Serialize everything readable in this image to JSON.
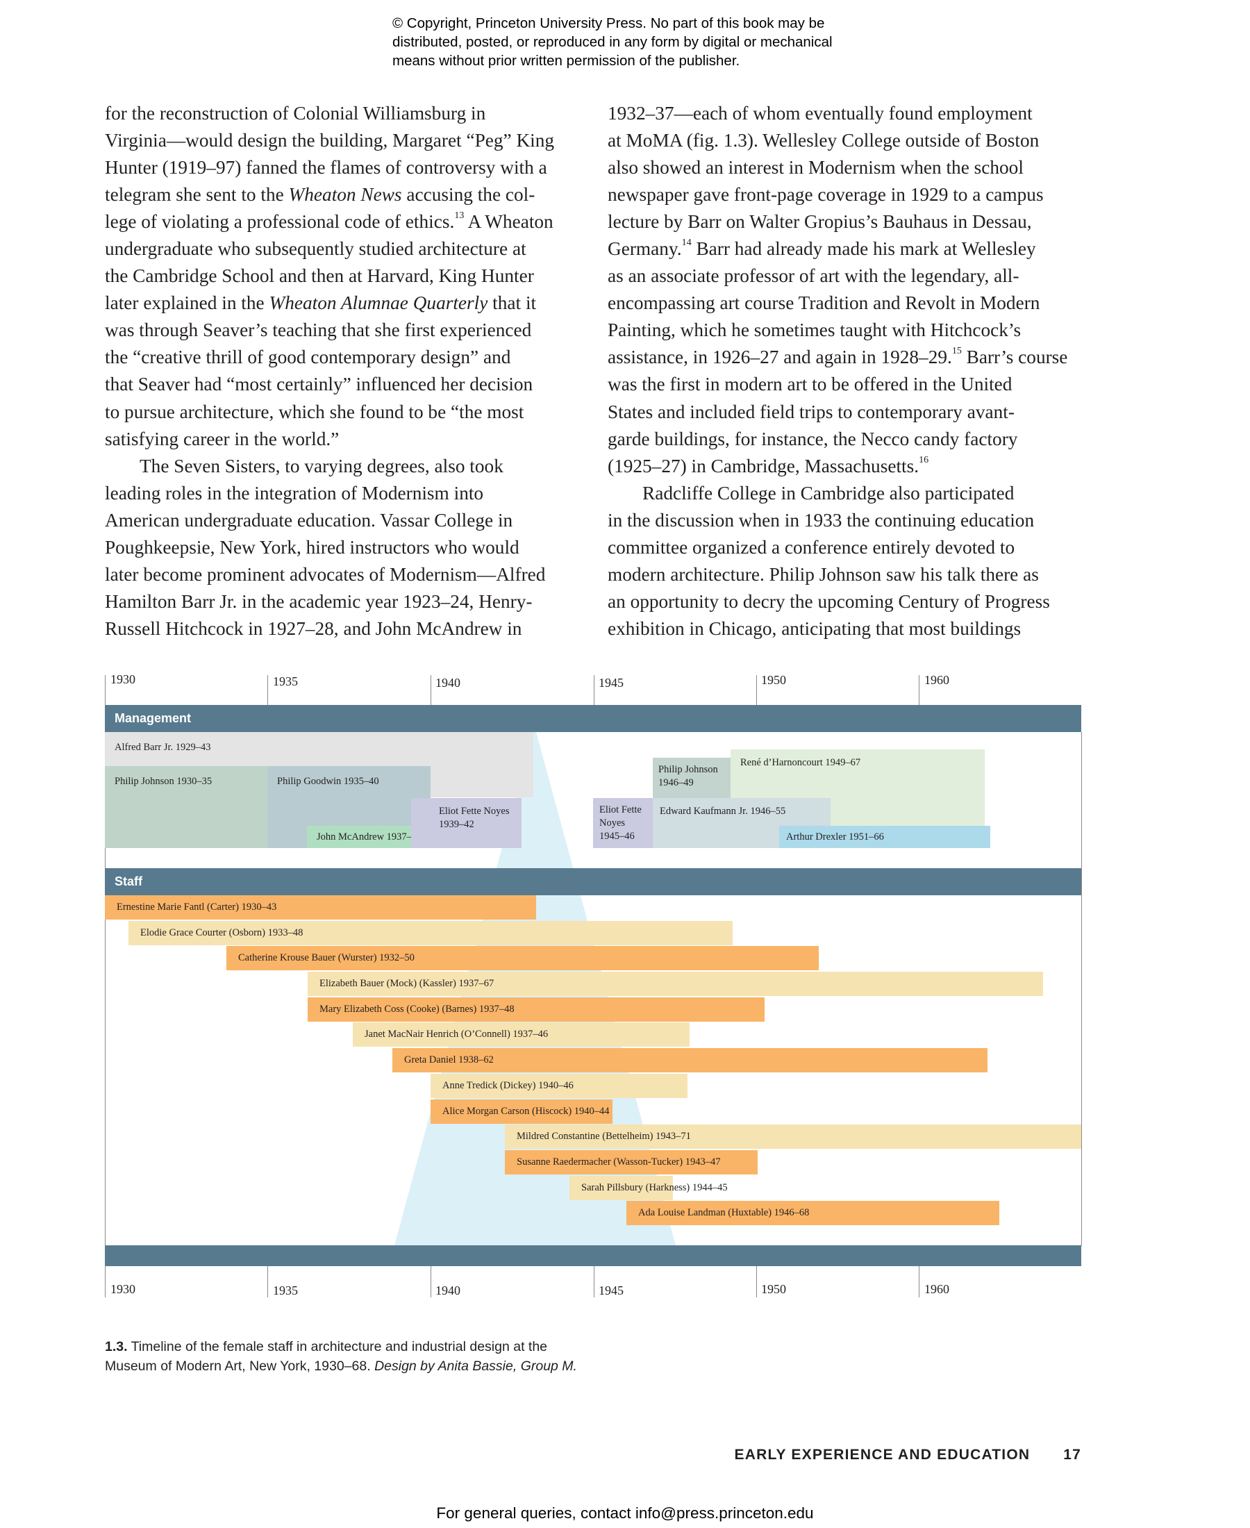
{
  "header": {
    "copyright_lines": [
      "© Copyright, Princeton University Press. No part of this book may be",
      "distributed, posted, or reproduced in any form by digital or mechanical",
      "means without prior written permission of the publisher."
    ]
  },
  "body": {
    "left_column": [
      [
        {
          "text": "for the reconstruction of Colonial Williamsburg in"
        }
      ],
      [
        {
          "text": "Virginia—would design the building, Margaret “Peg” King"
        }
      ],
      [
        {
          "text": "Hunter (1919–97) fanned the flames of controversy with a"
        }
      ],
      [
        {
          "text": "telegram she sent to the "
        },
        {
          "text": "Wheaton News",
          "style": "italic"
        },
        {
          "text": " accusing the col-"
        }
      ],
      [
        {
          "text": "lege of violating a professional code of ethics."
        },
        {
          "text": "13",
          "style": "sup"
        },
        {
          "text": " A Wheaton"
        }
      ],
      [
        {
          "text": "undergraduate who subsequently studied architecture at"
        }
      ],
      [
        {
          "text": "the Cambridge School and then at Harvard, King Hunter"
        }
      ],
      [
        {
          "text": "later explained in the "
        },
        {
          "text": "Wheaton Alumnae Quarterly",
          "style": "italic"
        },
        {
          "text": " that it"
        }
      ],
      [
        {
          "text": "was through Seaver’s teaching that she first experienced"
        }
      ],
      [
        {
          "text": "the “creative thrill of good contemporary design” and"
        }
      ],
      [
        {
          "text": "that Seaver had “most certainly” influenced her decision"
        }
      ],
      [
        {
          "text": "to pursue architecture, which she found to be “the most"
        }
      ],
      [
        {
          "text": "satisfying career in the world.”"
        }
      ],
      [
        {
          "text": "The Seven Sisters, to varying degrees, also took",
          "indent": true
        }
      ],
      [
        {
          "text": "leading roles in the integration of Modernism into"
        }
      ],
      [
        {
          "text": "American undergraduate education. Vassar College in"
        }
      ],
      [
        {
          "text": "Poughkeepsie, New York, hired instructors who would"
        }
      ],
      [
        {
          "text": "later become prominent advocates of Modernism—Alfred"
        }
      ],
      [
        {
          "text": "Hamilton Barr Jr. in the academic year 1923–24, Henry-"
        }
      ],
      [
        {
          "text": "Russell Hitchcock in 1927–28, and John McAndrew in"
        }
      ]
    ],
    "right_column": [
      [
        {
          "text": "1932–37—each of whom eventually found employment"
        }
      ],
      [
        {
          "text": "at MoMA (fig. 1.3). Wellesley College outside of Boston"
        }
      ],
      [
        {
          "text": "also showed an interest in Modernism when the school"
        }
      ],
      [
        {
          "text": "newspaper gave front-page coverage in 1929 to a campus"
        }
      ],
      [
        {
          "text": "lecture by Barr on Walter Gropius’s Bauhaus in Dessau,"
        }
      ],
      [
        {
          "text": "Germany."
        },
        {
          "text": "14",
          "style": "sup"
        },
        {
          "text": " Barr had already made his mark at Wellesley"
        }
      ],
      [
        {
          "text": "as an associate professor of art with the legendary, all-"
        }
      ],
      [
        {
          "text": "encompassing art course Tradition and Revolt in Modern"
        }
      ],
      [
        {
          "text": "Painting, which he sometimes taught with Hitchcock’s"
        }
      ],
      [
        {
          "text": "assistance, in 1926–27 and again in 1928–29."
        },
        {
          "text": "15",
          "style": "sup"
        },
        {
          "text": " Barr’s course"
        }
      ],
      [
        {
          "text": "was the first in modern art to be offered in the United"
        }
      ],
      [
        {
          "text": "States and included field trips to contemporary avant-"
        }
      ],
      [
        {
          "text": "garde buildings, for instance, the Necco candy factory"
        }
      ],
      [
        {
          "text": "(1925–27) in Cambridge, Massachusetts."
        },
        {
          "text": "16",
          "style": "sup"
        }
      ],
      [
        {
          "text": "Radcliffe College in Cambridge also participated",
          "indent": true
        }
      ],
      [
        {
          "text": "in the discussion when in 1933 the continuing education"
        }
      ],
      [
        {
          "text": "committee organized a conference entirely devoted to"
        }
      ],
      [
        {
          "text": "modern architecture. Philip Johnson saw his talk there as"
        }
      ],
      [
        {
          "text": "an opportunity to decry the upcoming Century of Progress"
        }
      ],
      [
        {
          "text": "exhibition in Chicago, anticipating that most buildings"
        }
      ]
    ]
  },
  "timeline": {
    "years": [
      "1930",
      "1935",
      "1940",
      "1945",
      "1950",
      "1960"
    ],
    "management_label": "Management",
    "staff_label": "Staff",
    "management": [
      {
        "label": "Alfred Barr Jr. 1929–43",
        "start": 1929,
        "end": 1943
      },
      {
        "label": "Philip Johnson 1930–35",
        "start": 1930,
        "end": 1935
      },
      {
        "label": "Philip Goodwin 1935–40",
        "start": 1935,
        "end": 1940
      },
      {
        "label": "John McAndrew 1937–40",
        "start": 1937,
        "end": 1940
      },
      {
        "label": "Eliot Fette Noyes\n1939–42",
        "start": 1939,
        "end": 1942
      },
      {
        "label": "Eliot Fette\nNoyes\n1945–46",
        "start": 1945,
        "end": 1946
      },
      {
        "label": "Philip Johnson\n1946–49",
        "start": 1946,
        "end": 1949
      },
      {
        "label": "René d’Harnoncourt 1949–67",
        "start": 1949,
        "end": 1967
      },
      {
        "label": "Edward Kaufmann Jr. 1946–55",
        "start": 1946,
        "end": 1955
      },
      {
        "label": "Arthur Drexler 1951–66",
        "start": 1951,
        "end": 1966
      }
    ],
    "staff": [
      {
        "label": "Ernestine Marie Fantl (Carter) 1930–43",
        "start": 1930,
        "end": 1943
      },
      {
        "label": "Elodie Grace Courter (Osborn) 1933–48",
        "start": 1933,
        "end": 1948
      },
      {
        "label": "Catherine Krouse Bauer (Wurster) 1932–50",
        "start": 1932,
        "end": 1950
      },
      {
        "label": "Elizabeth Bauer (Mock) (Kassler) 1937–67",
        "start": 1937,
        "end": 1967
      },
      {
        "label": "Mary Elizabeth Coss (Cooke) (Barnes) 1937–48",
        "start": 1937,
        "end": 1948
      },
      {
        "label": "Janet MacNair Henrich (O’Connell) 1937–46",
        "start": 1937,
        "end": 1946
      },
      {
        "label": "Greta Daniel 1938–62",
        "start": 1938,
        "end": 1962
      },
      {
        "label": "Anne Tredick (Dickey) 1940–46",
        "start": 1940,
        "end": 1946
      },
      {
        "label": "Alice Morgan Carson (Hiscock) 1940–44",
        "start": 1940,
        "end": 1944
      },
      {
        "label": "Mildred Constantine (Bettelheim) 1943–71",
        "start": 1943,
        "end": 1971
      },
      {
        "label": "Susanne Raedermacher (Wasson-Tucker) 1943–47",
        "start": 1943,
        "end": 1947
      },
      {
        "label": "Sarah Pillsbury (Harkness) 1944–45",
        "start": 1944,
        "end": 1945
      },
      {
        "label": "Ada Louise Landman (Huxtable) 1946–68",
        "start": 1946,
        "end": 1968
      }
    ],
    "colors": {
      "band": "#577a8e",
      "staff_dark": "#f9b467",
      "staff_light": "#f6e3b2",
      "wedge": "#dcf0f8"
    }
  },
  "caption": {
    "number": "1.3.",
    "line1": " Timeline of the female staff in architecture and industrial design at the",
    "line2": "Museum of Modern Art, New York, 1930–68. ",
    "credit": "Design by Anita Bassie, Group M."
  },
  "footer": {
    "running_head": "EARLY EXPERIENCE AND EDUCATION",
    "page_number": "17",
    "contact": "For general queries, contact info@press.princeton.edu"
  }
}
